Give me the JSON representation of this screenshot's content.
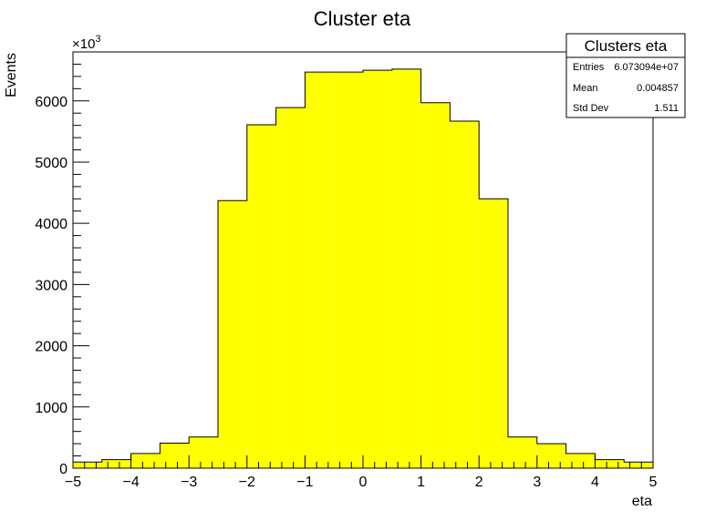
{
  "chart_data": {
    "type": "bar",
    "title": "Cluster eta",
    "xlabel": "eta",
    "ylabel": "Events",
    "y_multiplier": "×10",
    "y_multiplier_exp": "3",
    "xlim": [
      -5,
      5
    ],
    "ylim": [
      0,
      6800
    ],
    "bin_edges": [
      -5,
      -4.5,
      -4,
      -3.5,
      -3,
      -2.5,
      -2,
      -1.5,
      -1,
      -0.5,
      0,
      0.5,
      1,
      1.5,
      2,
      2.5,
      3,
      3.5,
      4,
      4.5,
      5
    ],
    "values": [
      100,
      140,
      240,
      410,
      510,
      4370,
      5610,
      5890,
      6470,
      6470,
      6500,
      6520,
      5970,
      5670,
      4400,
      510,
      400,
      240,
      140,
      100
    ],
    "x_ticks": [
      -5,
      -4,
      -3,
      -2,
      -1,
      0,
      1,
      2,
      3,
      4,
      5
    ],
    "x_tick_labels": [
      "−5",
      "−4",
      "−3",
      "−2",
      "−1",
      "0",
      "1",
      "2",
      "3",
      "4",
      "5"
    ],
    "y_ticks": [
      0,
      1000,
      2000,
      3000,
      4000,
      5000,
      6000
    ],
    "y_tick_labels": [
      "0",
      "1000",
      "2000",
      "3000",
      "4000",
      "5000",
      "6000"
    ],
    "fill_color": "#ffff00",
    "line_color": "#000000",
    "grid": false,
    "legend": "top-right"
  },
  "stats": {
    "title": "Clusters eta",
    "rows": [
      {
        "label": "Entries",
        "value": "6.073094e+07"
      },
      {
        "label": "Mean",
        "value": "0.004857"
      },
      {
        "label": "Std Dev",
        "value": "1.511"
      }
    ]
  }
}
